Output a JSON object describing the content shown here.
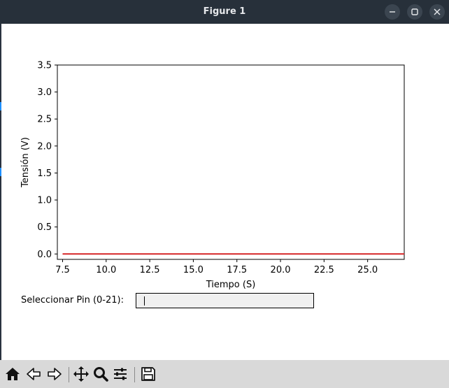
{
  "window": {
    "title": "Figure 1",
    "minimize_icon": "minimize-icon",
    "maximize_icon": "maximize-icon",
    "close_icon": "close-icon"
  },
  "chart_data": {
    "type": "line",
    "title": "",
    "xlabel": "Tiempo (S)",
    "ylabel": "Tensión (V)",
    "xlim": [
      7.2,
      27.1
    ],
    "ylim": [
      -0.1,
      3.5
    ],
    "xticks": [
      7.5,
      10.0,
      12.5,
      15.0,
      17.5,
      20.0,
      22.5,
      25.0
    ],
    "xtick_labels": [
      "7.5",
      "10.0",
      "12.5",
      "15.0",
      "17.5",
      "20.0",
      "22.5",
      "25.0"
    ],
    "yticks": [
      0.0,
      0.5,
      1.0,
      1.5,
      2.0,
      2.5,
      3.0,
      3.5
    ],
    "ytick_labels": [
      "0.0",
      "0.5",
      "1.0",
      "1.5",
      "2.0",
      "2.5",
      "3.0",
      "3.5"
    ],
    "grid": false,
    "series": [
      {
        "color": "#d62728",
        "x": [
          7.5,
          27.1
        ],
        "y": [
          0.0,
          0.0
        ]
      }
    ]
  },
  "pin_selector": {
    "label": "Seleccionar Pin (0-21):",
    "value": ""
  },
  "toolbar": {
    "tools": [
      "home-icon",
      "back-icon",
      "forward-icon",
      "pan-icon",
      "zoom-icon",
      "configure-subplots-icon",
      "save-icon"
    ]
  }
}
